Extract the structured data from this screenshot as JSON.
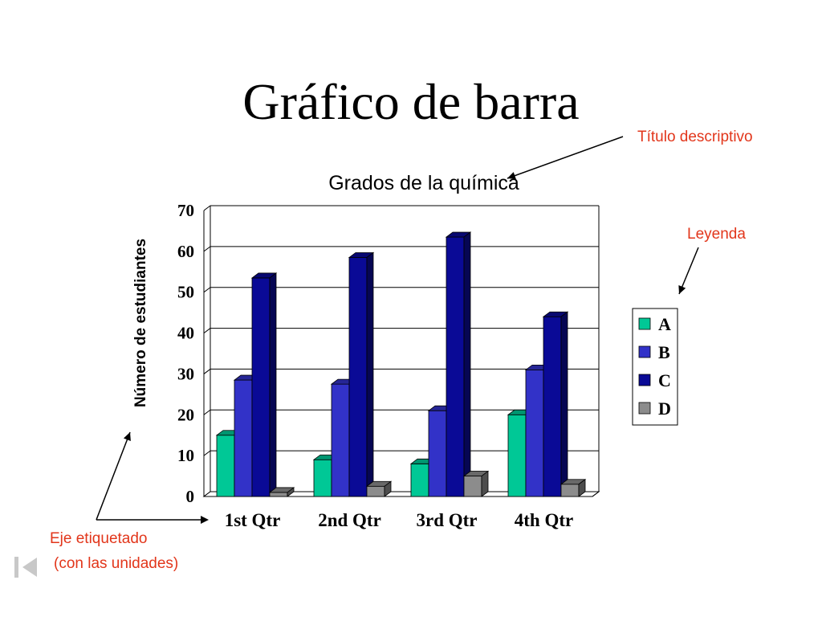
{
  "slide": {
    "title": "Gráfico de barra"
  },
  "annotations": {
    "title_note": "Título descriptivo",
    "legend_note": "Leyenda",
    "axis_note_line1": "Eje etiquetado",
    "axis_note_line2": "(con las unidades)",
    "color": "#e2361b"
  },
  "nav": {
    "icon": "first-slide-icon"
  },
  "chart_data": {
    "type": "bar",
    "title": "Grados de la química",
    "xlabel": "",
    "ylabel": "Número de estudiantes",
    "categories": [
      "1st Qtr",
      "2nd Qtr",
      "3rd Qtr",
      "4th Qtr"
    ],
    "ylim": [
      0,
      70
    ],
    "yticks": [
      0,
      10,
      20,
      30,
      40,
      50,
      60,
      70
    ],
    "grid": true,
    "legend_position": "right",
    "style": "3d-clustered",
    "series": [
      {
        "name": "A",
        "values": [
          15,
          9,
          8,
          20
        ],
        "color": "#00c896"
      },
      {
        "name": "B",
        "values": [
          28.5,
          27.5,
          21,
          31
        ],
        "color": "#3232c8"
      },
      {
        "name": "C",
        "values": [
          53.5,
          58.5,
          63.5,
          44
        ],
        "color": "#0a0a96"
      },
      {
        "name": "D",
        "values": [
          1,
          2.5,
          5,
          3
        ],
        "color": "#8c8c8c"
      }
    ]
  }
}
